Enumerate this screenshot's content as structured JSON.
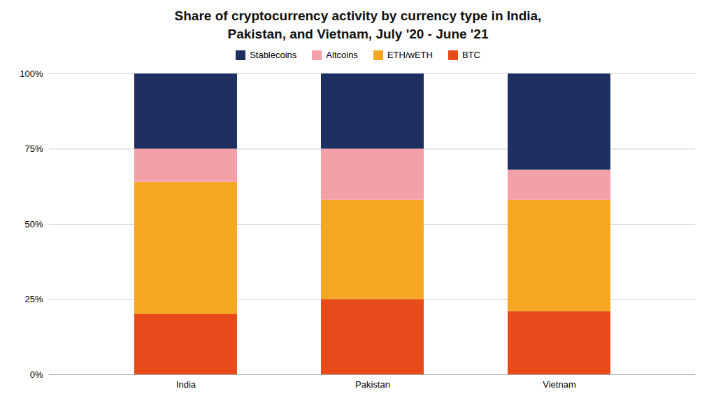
{
  "chart_data": {
    "type": "bar",
    "stacked": true,
    "title": "Share of cryptocurrency activity by currency type in India,\nPakistan, and Vietnam, July '20 - June '21",
    "categories": [
      "India",
      "Pakistan",
      "Vietnam"
    ],
    "series": [
      {
        "name": "BTC",
        "color": "#E84B1A",
        "values": [
          20,
          25,
          21
        ]
      },
      {
        "name": "ETH/wETH",
        "color": "#F5A623",
        "values": [
          44,
          33,
          37
        ]
      },
      {
        "name": "Altcoins",
        "color": "#F4A0A8",
        "values": [
          11,
          17,
          10
        ]
      },
      {
        "name": "Stablecoins",
        "color": "#1E3060",
        "values": [
          25,
          25,
          32
        ]
      }
    ],
    "ylim": [
      0,
      100
    ],
    "yticks": [
      {
        "value": 0,
        "label": "0%"
      },
      {
        "value": 25,
        "label": "25%"
      },
      {
        "value": 50,
        "label": "50%"
      },
      {
        "value": 75,
        "label": "75%"
      },
      {
        "value": 100,
        "label": "100%"
      }
    ],
    "grid": true,
    "legend": "top"
  }
}
